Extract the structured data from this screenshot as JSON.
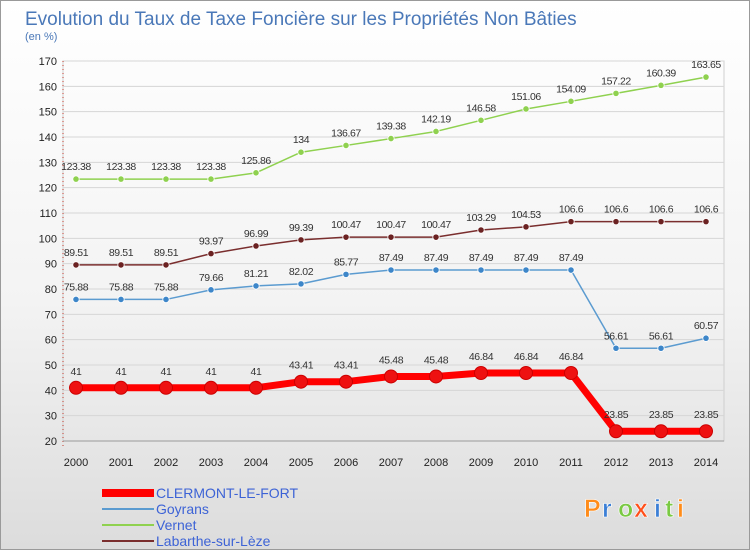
{
  "chart_data": {
    "type": "line",
    "title": "Evolution du Taux de Taxe Foncière sur les Propriétés Non Bâties",
    "ylabel": "(en %)",
    "xlabel": "",
    "ylim": [
      20,
      170
    ],
    "yticks": [
      20,
      30,
      40,
      50,
      60,
      70,
      80,
      90,
      100,
      110,
      120,
      130,
      140,
      150,
      160,
      170
    ],
    "categories": [
      "2000",
      "2001",
      "2002",
      "2003",
      "2004",
      "2005",
      "2006",
      "2007",
      "2008",
      "2009",
      "2010",
      "2011",
      "2012",
      "2013",
      "2014"
    ],
    "series": [
      {
        "name": "Vernet",
        "color": "#8fd14f",
        "dot": "#8fd14f",
        "width": 1.5,
        "values": [
          123.38,
          123.38,
          123.38,
          123.38,
          125.86,
          134,
          136.67,
          139.38,
          142.19,
          146.58,
          151.06,
          154.09,
          157.22,
          160.39,
          163.65
        ],
        "labels": [
          "123.38",
          "123.38",
          "123.38",
          "123.38",
          "125.86",
          "134",
          "136.67",
          "139.38",
          "142.19",
          "146.58",
          "151.06",
          "154.09",
          "157.22",
          "160.39",
          "163.65"
        ]
      },
      {
        "name": "Labarthe-sur-Lèze",
        "color": "#7a2e2e",
        "dot": "#6b2222",
        "width": 1.5,
        "values": [
          89.51,
          89.51,
          89.51,
          93.97,
          96.99,
          99.39,
          100.47,
          100.47,
          100.47,
          103.29,
          104.53,
          106.6,
          106.6,
          106.6,
          106.6
        ],
        "labels": [
          "89.51",
          "89.51",
          "89.51",
          "93.97",
          "96.99",
          "99.39",
          "100.47",
          "100.47",
          "100.47",
          "103.29",
          "104.53",
          "106.6",
          "106.6",
          "106.6",
          "106.6"
        ]
      },
      {
        "name": "Goyrans",
        "color": "#5b9bd0",
        "dot": "#3d86c9",
        "width": 1.5,
        "values": [
          75.88,
          75.88,
          75.88,
          79.66,
          81.21,
          82.02,
          85.77,
          87.49,
          87.49,
          87.49,
          87.49,
          87.49,
          56.61,
          56.61,
          60.57
        ],
        "labels": [
          "75.88",
          "75.88",
          "75.88",
          "79.66",
          "81.21",
          "82.02",
          "85.77",
          "87.49",
          "87.49",
          "87.49",
          "87.49",
          "87.49",
          "56.61",
          "56.61",
          "60.57"
        ]
      },
      {
        "name": "CLERMONT-LE-FORT",
        "color": "#ff0000",
        "dot": "#ee1111",
        "width": 7,
        "values": [
          41,
          41,
          41,
          41,
          41,
          43.41,
          43.41,
          45.48,
          45.48,
          46.84,
          46.84,
          46.84,
          23.85,
          23.85,
          23.85
        ],
        "labels": [
          "41",
          "41",
          "41",
          "41",
          "41",
          "43.41",
          "43.41",
          "45.48",
          "45.48",
          "46.84",
          "46.84",
          "46.84",
          "23.85",
          "23.85",
          "23.85"
        ]
      }
    ],
    "legend": [
      "CLERMONT-LE-FORT",
      "Goyrans",
      "Vernet",
      "Labarthe-sur-Lèze"
    ],
    "legend_color": "#3d63d6"
  },
  "logo": {
    "text": "Proxiti",
    "letters": [
      "P",
      "r",
      "o",
      "x",
      "i",
      "t",
      "i"
    ],
    "colors": [
      "#ff8c1a",
      "#3b7fd6",
      "#7ac943",
      "#ff4f1a",
      "#3b7fd6",
      "#7ac943",
      "#ff8c1a"
    ]
  }
}
